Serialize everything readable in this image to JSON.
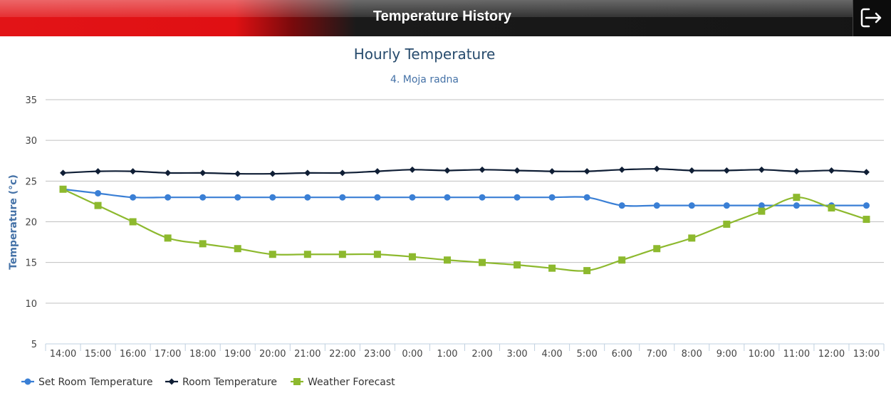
{
  "header": {
    "title": "Temperature History",
    "exit_icon": "exit-icon"
  },
  "colors": {
    "set": "#3a7fd5",
    "room": "#0f1e35",
    "forecast": "#8db92e",
    "title": "#274b6d",
    "subtitle": "#4572a7"
  },
  "chart_data": {
    "type": "line",
    "title": "Hourly Temperature",
    "subtitle": "4. Moja radna",
    "xlabel": "",
    "ylabel": "Temperature (°c)",
    "ylim": [
      5,
      35
    ],
    "yticks": [
      5,
      10,
      15,
      20,
      25,
      30,
      35
    ],
    "grid": true,
    "legend": "bottom-left",
    "categories": [
      "14:00",
      "15:00",
      "16:00",
      "17:00",
      "18:00",
      "19:00",
      "20:00",
      "21:00",
      "22:00",
      "23:00",
      "0:00",
      "1:00",
      "2:00",
      "3:00",
      "4:00",
      "5:00",
      "6:00",
      "7:00",
      "8:00",
      "9:00",
      "10:00",
      "11:00",
      "12:00",
      "13:00"
    ],
    "series": [
      {
        "name": "Set Room Temperature",
        "marker": "circle",
        "values": [
          24,
          23.5,
          23,
          23,
          23,
          23,
          23,
          23,
          23,
          23,
          23,
          23,
          23,
          23,
          23,
          23,
          22,
          22,
          22,
          22,
          22,
          22,
          22,
          22
        ]
      },
      {
        "name": "Room Temperature",
        "marker": "diamond",
        "values": [
          26,
          26.2,
          26.2,
          26,
          26,
          25.9,
          25.9,
          26,
          26,
          26.2,
          26.4,
          26.3,
          26.4,
          26.3,
          26.2,
          26.2,
          26.4,
          26.5,
          26.3,
          26.3,
          26.4,
          26.2,
          26.3,
          26.1
        ]
      },
      {
        "name": "Weather Forecast",
        "marker": "square",
        "values": [
          24,
          22,
          20,
          18,
          17.3,
          16.7,
          16,
          16,
          16,
          16,
          15.7,
          15.3,
          15,
          14.7,
          14.3,
          14,
          15.3,
          16.7,
          18,
          19.7,
          21.3,
          23,
          21.7,
          20.3
        ]
      }
    ]
  }
}
